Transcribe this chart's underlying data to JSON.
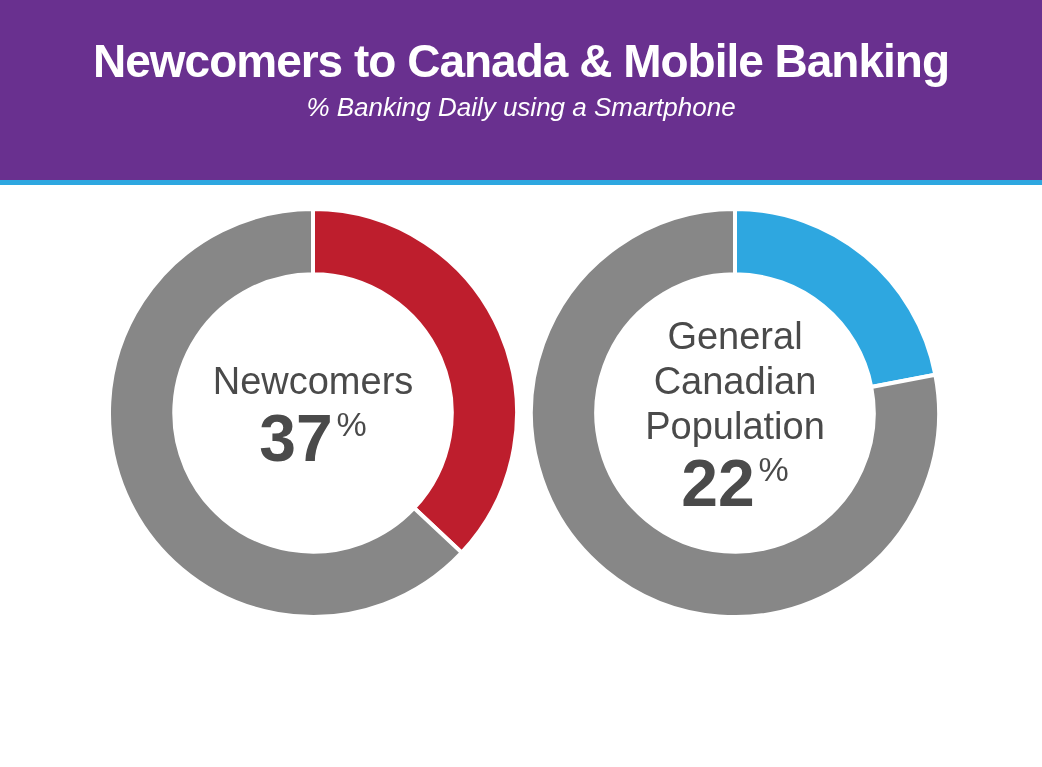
{
  "chart_data": [
    {
      "type": "donut",
      "title": "Newcomers to Canada & Mobile Banking",
      "subtitle": "% Banking Daily using a Smartphone",
      "categories": [
        "Newcomers",
        null
      ],
      "values": [
        37,
        63
      ],
      "colors": [
        "#be1e2d",
        "#878787"
      ],
      "value_labels": [
        "37%",
        null
      ],
      "legend": false
    },
    {
      "type": "donut",
      "categories": [
        "General Canadian Population",
        null
      ],
      "values": [
        22,
        78
      ],
      "colors": [
        "#2ea7e0",
        "#878787"
      ],
      "value_labels": [
        "22%",
        null
      ],
      "legend": false
    }
  ]
}
